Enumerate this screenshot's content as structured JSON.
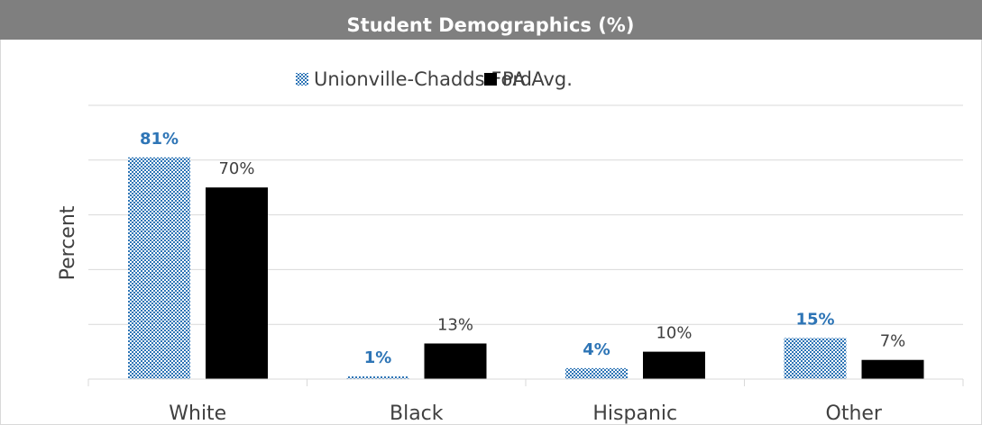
{
  "chart_data": {
    "type": "bar",
    "title": "Student Demographics (%)",
    "y_label": "Percent",
    "categories": [
      "White",
      "Black",
      "Hispanic",
      "Other"
    ],
    "series": [
      {
        "name": "Unionville-Chadds Ford",
        "color": "#2e75b6",
        "pattern": "checker",
        "values": [
          81,
          1,
          4,
          15
        ],
        "value_labels": [
          "81%",
          "1%",
          "4%",
          "15%"
        ]
      },
      {
        "name": "PA Avg.",
        "color": "#000000",
        "values": [
          70,
          13,
          10,
          7
        ],
        "value_labels": [
          "70%",
          "13%",
          "10%",
          "7%"
        ]
      }
    ],
    "ylim": [
      0,
      100
    ],
    "yticks": [
      0,
      20,
      40,
      60,
      80,
      100
    ],
    "grid": true,
    "legend": "top"
  }
}
